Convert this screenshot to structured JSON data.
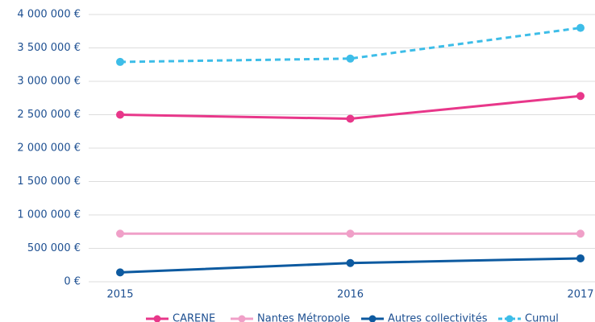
{
  "chart_data": {
    "type": "line",
    "categories": [
      "2015",
      "2016",
      "2017"
    ],
    "series": [
      {
        "name": "CARENE",
        "color": "#e8378a",
        "values": [
          2500000,
          2440000,
          2780000
        ]
      },
      {
        "name": "Nantes Métropole",
        "color": "#f0a0c8",
        "values": [
          720000,
          720000,
          720000
        ]
      },
      {
        "name": "Autres collectivités",
        "color": "#0d5aa0",
        "values": [
          140000,
          280000,
          350000
        ]
      },
      {
        "name": "Cumul",
        "color": "#3dbde8",
        "dashed": true,
        "values": [
          3290000,
          3340000,
          3800000
        ]
      }
    ],
    "ylim": [
      0,
      4000000
    ],
    "yticks": [
      {
        "value": 0,
        "label": "0 €"
      },
      {
        "value": 500000,
        "label": "500 000 €"
      },
      {
        "value": 1000000,
        "label": "1 000 000 €"
      },
      {
        "value": 1500000,
        "label": "1 500 000 €"
      },
      {
        "value": 2000000,
        "label": "2 000 000 €"
      },
      {
        "value": 2500000,
        "label": "2 500 000 €"
      },
      {
        "value": 3000000,
        "label": "3 000 000 €"
      },
      {
        "value": 3500000,
        "label": "3 500 000 €"
      },
      {
        "value": 4000000,
        "label": "4 000 000 €"
      }
    ],
    "grid": true,
    "legend": "bottom"
  }
}
